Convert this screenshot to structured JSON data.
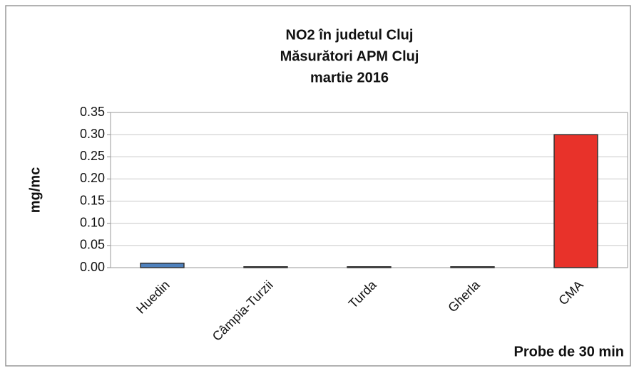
{
  "chart_data": {
    "type": "bar",
    "title": [
      "NO2 în judetul Cluj",
      "Măsurători APM Cluj",
      "martie 2016"
    ],
    "ylabel": "mg/mc",
    "xlabel": "Probe de 30 min",
    "categories": [
      "Huedin",
      "Câmpia-Turzii",
      "Turda",
      "Gherla",
      "CMA"
    ],
    "values": [
      0.01,
      0.002,
      0.002,
      0.002,
      0.3
    ],
    "colors": [
      "#4f81bd",
      "#4f81bd",
      "#4f81bd",
      "#4f81bd",
      "#e8322a"
    ],
    "ylim": [
      0,
      0.35
    ],
    "yticks": [
      {
        "value": 0,
        "label": "0.00"
      },
      {
        "value": 0.05,
        "label": "0.05"
      },
      {
        "value": 0.1,
        "label": "0.10"
      },
      {
        "value": 0.15,
        "label": "0.15"
      },
      {
        "value": 0.2,
        "label": "0.20"
      },
      {
        "value": 0.25,
        "label": "0.25"
      },
      {
        "value": 0.3,
        "label": "0.30"
      },
      {
        "value": 0.35,
        "label": "0.35"
      }
    ],
    "grid": true
  }
}
